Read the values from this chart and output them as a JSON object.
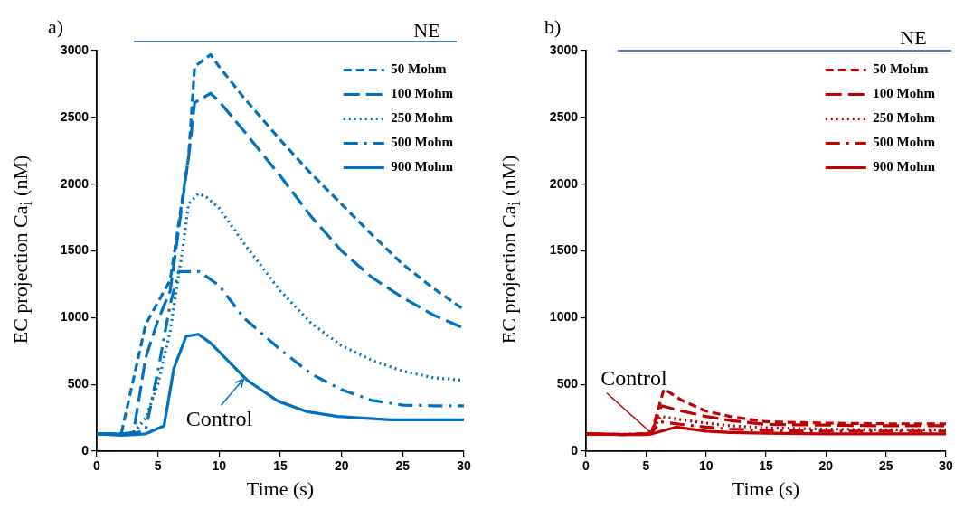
{
  "chart_data": [
    {
      "type": "line",
      "title": "a)",
      "xlabel": "Time (s)",
      "ylabel": "EC projection Ca$_{i}$ (nM)",
      "xlim": [
        0,
        30
      ],
      "xticks": [
        0,
        5,
        10,
        15,
        20,
        25,
        30
      ],
      "ylim": [
        0,
        3000
      ],
      "yticks": [
        0,
        500,
        1000,
        1500,
        2000,
        2500,
        3000
      ],
      "grid": false,
      "legend": "top right",
      "marker": "none",
      "annotations": [
        "NE",
        {
          "text": "Control",
          "x": 12,
          "y": 540
        }
      ],
      "series": [
        {
          "name": "50 Mohm",
          "color": "#0070c0",
          "line_style": "dashed",
          "x": [
            0,
            2,
            4,
            6,
            7.5,
            8,
            9.3,
            10,
            12,
            15,
            17.5,
            20,
            22.5,
            25,
            27.5,
            30
          ],
          "values": [
            130,
            130,
            950,
            1280,
            2200,
            2880,
            2970,
            2880,
            2650,
            2330,
            2080,
            1850,
            1620,
            1400,
            1220,
            1060
          ]
        },
        {
          "name": "100 Mohm",
          "color": "#0070c0",
          "line_style": "longdash",
          "x": [
            0,
            2,
            3,
            4,
            5,
            6,
            7.5,
            8,
            9.3,
            10,
            12,
            15,
            17.5,
            20,
            22.5,
            25,
            27.5,
            30
          ],
          "values": [
            130,
            130,
            140,
            700,
            980,
            1200,
            2200,
            2610,
            2680,
            2620,
            2400,
            2060,
            1760,
            1500,
            1300,
            1150,
            1020,
            920
          ]
        },
        {
          "name": "250 Mohm",
          "color": "#0070c0",
          "line_style": "dotted",
          "x": [
            0,
            3,
            4,
            5,
            6,
            7,
            7.5,
            8.3,
            9,
            10,
            12,
            15,
            17.5,
            20,
            22.5,
            25,
            27.5,
            30
          ],
          "values": [
            130,
            130,
            250,
            500,
            900,
            1500,
            1850,
            1930,
            1900,
            1820,
            1560,
            1200,
            960,
            790,
            680,
            600,
            550,
            530
          ]
        },
        {
          "name": "500 Mohm",
          "color": "#0070c0",
          "line_style": "dashdot",
          "x": [
            0,
            3,
            4,
            5,
            6,
            6.7,
            8.4,
            10,
            12,
            15,
            17.5,
            20,
            22.5,
            25,
            27.5,
            30
          ],
          "values": [
            130,
            130,
            160,
            600,
            1100,
            1345,
            1345,
            1240,
            1000,
            760,
            580,
            460,
            380,
            345,
            340,
            340
          ]
        },
        {
          "name": "900 Mohm",
          "color": "#0070c0",
          "line_style": "solid",
          "x": [
            0,
            2,
            4,
            5.5,
            6.3,
            7.3,
            8.3,
            9.3,
            12.3,
            14.8,
            17.2,
            19.7,
            24,
            30
          ],
          "values": [
            130,
            120,
            130,
            190,
            620,
            860,
            875,
            810,
            530,
            375,
            295,
            260,
            235,
            235
          ]
        }
      ]
    },
    {
      "type": "line",
      "title": "b)",
      "xlabel": "Time (s)",
      "ylabel": "EC projection Ca$_{i}$ (nM)",
      "xlim": [
        0,
        30
      ],
      "xticks": [
        0,
        5,
        10,
        15,
        20,
        25,
        30
      ],
      "ylim": [
        0,
        3000
      ],
      "yticks": [
        0,
        500,
        1000,
        1500,
        2000,
        2500,
        3000
      ],
      "grid": false,
      "legend": "top right",
      "marker": "none",
      "annotations": [
        "NE",
        {
          "text": "Control",
          "x": 5.5,
          "y": 130
        }
      ],
      "series": [
        {
          "name": "50 Mohm",
          "color": "#c00000",
          "line_style": "dashed",
          "x": [
            0,
            3,
            5,
            5.5,
            6.5,
            8,
            10,
            12,
            15,
            20,
            25,
            30
          ],
          "values": [
            130,
            125,
            130,
            150,
            466,
            380,
            300,
            260,
            220,
            210,
            205,
            205
          ]
        },
        {
          "name": "100 Mohm",
          "color": "#c00000",
          "line_style": "longdash",
          "x": [
            0,
            3,
            5,
            5.5,
            6.3,
            8,
            10,
            12,
            15,
            20,
            25,
            30
          ],
          "values": [
            130,
            125,
            130,
            150,
            340,
            300,
            260,
            230,
            200,
            195,
            190,
            190
          ]
        },
        {
          "name": "250 Mohm",
          "color": "#c00000",
          "line_style": "dotted",
          "x": [
            0,
            3,
            5,
            5.5,
            6.2,
            8,
            10,
            12,
            15,
            20,
            25,
            30
          ],
          "values": [
            130,
            125,
            130,
            145,
            260,
            235,
            210,
            190,
            175,
            165,
            160,
            160
          ]
        },
        {
          "name": "500 Mohm",
          "color": "#c00000",
          "line_style": "dashdot",
          "x": [
            0,
            3,
            5,
            5.5,
            6.2,
            8,
            10,
            12,
            15,
            20,
            25,
            30
          ],
          "values": [
            130,
            125,
            130,
            140,
            220,
            200,
            180,
            165,
            155,
            150,
            150,
            150
          ]
        },
        {
          "name": "900 Mohm",
          "color": "#c00000",
          "line_style": "solid",
          "x": [
            0,
            3,
            5,
            5.5,
            7.5,
            10,
            12,
            15,
            20,
            25,
            30
          ],
          "values": [
            130,
            125,
            125,
            130,
            180,
            150,
            140,
            135,
            130,
            130,
            130
          ]
        }
      ]
    }
  ]
}
